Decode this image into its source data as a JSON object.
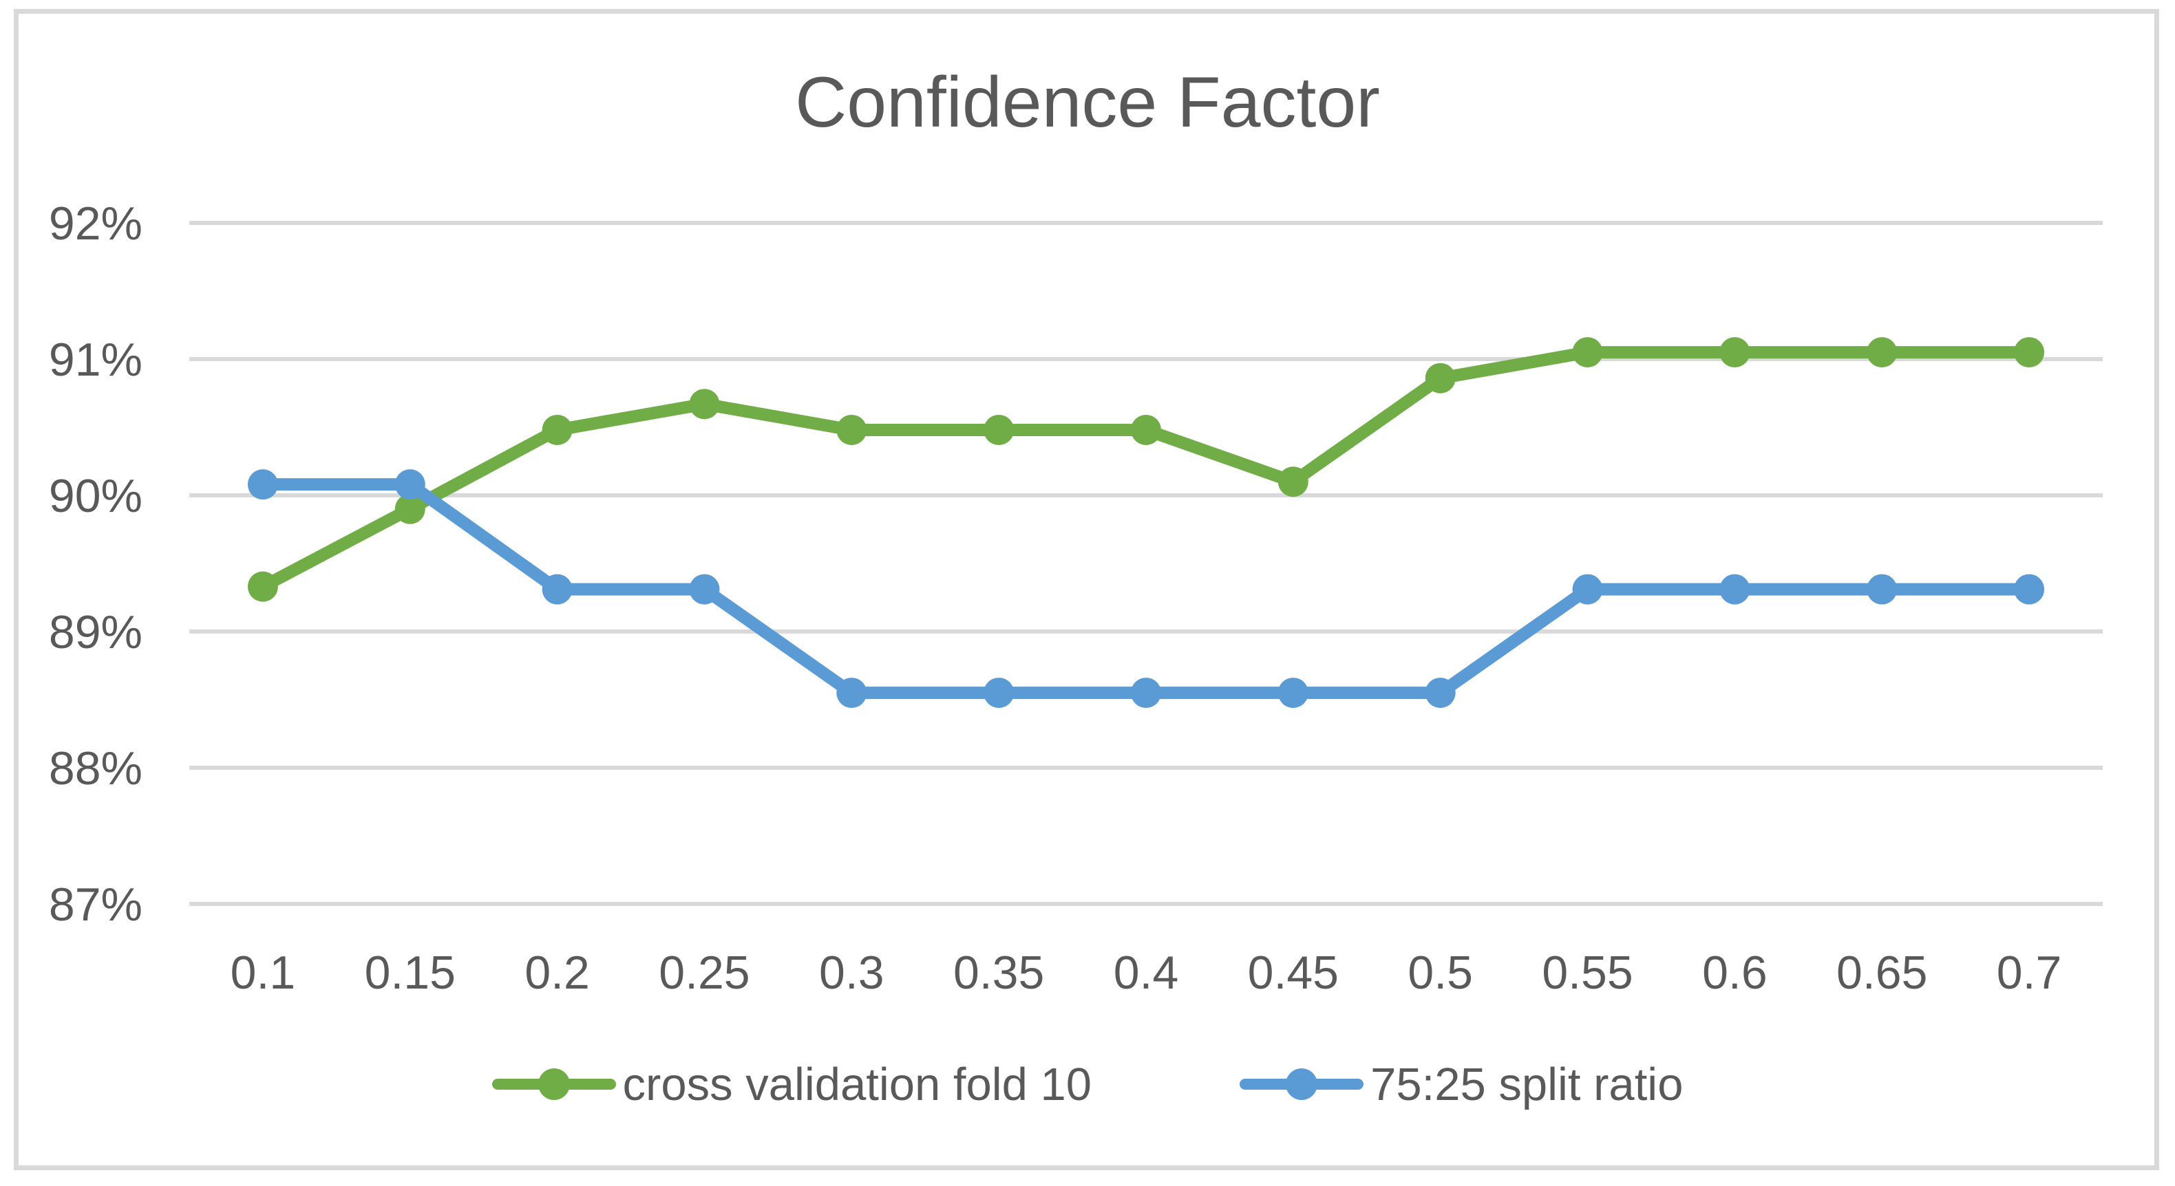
{
  "chart_data": {
    "type": "line",
    "title": "Confidence Factor",
    "xlabel": "",
    "ylabel": "",
    "categories": [
      "0.1",
      "0.15",
      "0.2",
      "0.25",
      "0.3",
      "0.35",
      "0.4",
      "0.45",
      "0.5",
      "0.55",
      "0.6",
      "0.65",
      "0.7"
    ],
    "series": [
      {
        "name": "cross validation fold 10",
        "color": "#70AD47",
        "values": [
          89.33,
          89.9,
          90.48,
          90.67,
          90.48,
          90.48,
          90.48,
          90.1,
          90.86,
          91.05,
          91.05,
          91.05,
          91.05
        ]
      },
      {
        "name": "75:25 split ratio",
        "color": "#5B9BD5",
        "values": [
          90.08,
          90.08,
          89.31,
          89.31,
          88.55,
          88.55,
          88.55,
          88.55,
          88.55,
          89.31,
          89.31,
          89.31,
          89.31
        ]
      }
    ],
    "y_axis": {
      "min": 87,
      "max": 92,
      "step": 1,
      "tick_labels": [
        "87%",
        "88%",
        "89%",
        "90%",
        "91%",
        "92%"
      ]
    },
    "ylim": [
      87,
      92
    ],
    "grid": "horizontal",
    "legend_position": "bottom",
    "marker_style": "circle",
    "colors": {
      "text": "#595959",
      "gridline": "#D9D9D9",
      "frame_border": "#D9D9D9",
      "background": "#FFFFFF"
    }
  }
}
